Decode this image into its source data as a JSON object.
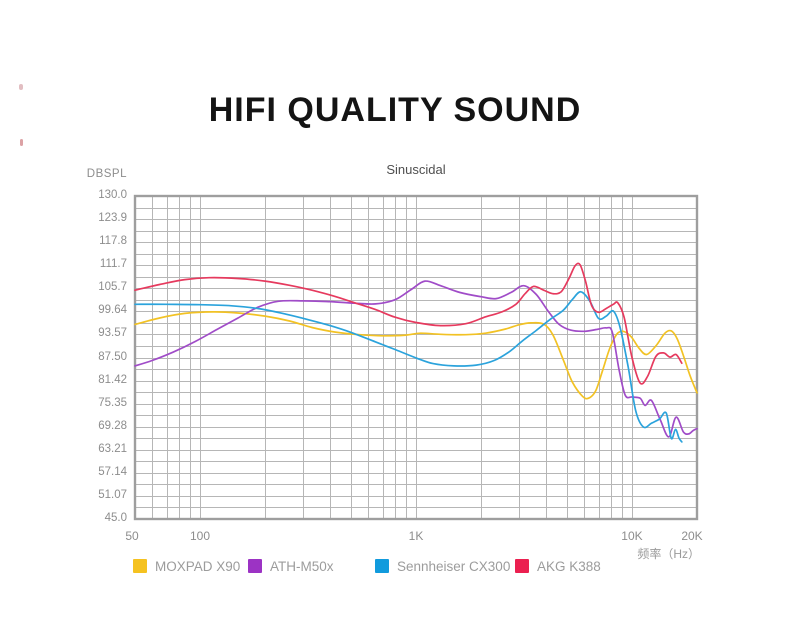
{
  "page": {
    "title": "HIFI QUALITY SOUND"
  },
  "chart_data": {
    "type": "line",
    "title": "Sinuscidal",
    "y_axis_unit": "DBSPL",
    "x_axis_label": "频率（Hz）",
    "x_scale": "log",
    "x_range": [
      50,
      20000
    ],
    "y_range": [
      45,
      130
    ],
    "grid": "on",
    "legend_position": "bottom",
    "y_tick_labels": [
      "130.0",
      "123.9",
      "117.8",
      "111.7",
      "105.7",
      "99.64",
      "93.57",
      "87.50",
      "81.42",
      "75.35",
      "69.28",
      "63.21",
      "57.14",
      "51.07",
      "45.0"
    ],
    "x_ticks": [
      {
        "label": "50",
        "f": 50,
        "dx": -3
      },
      {
        "label": "100",
        "f": 100,
        "dx": 0
      },
      {
        "label": "1K",
        "f": 1000,
        "dx": 0
      },
      {
        "label": "10K",
        "f": 10000,
        "dx": 0
      },
      {
        "label": "20K",
        "f": 20000,
        "dx": -5
      }
    ],
    "x_gridlines": [
      50,
      60,
      70,
      80,
      90,
      100,
      200,
      300,
      400,
      500,
      600,
      700,
      800,
      900,
      1000,
      2000,
      3000,
      4000,
      5000,
      6000,
      7000,
      8000,
      9000,
      10000,
      20000
    ],
    "y_minor_divisions": 28,
    "grid_color": "#b6b6b6",
    "frame_color": "#9e9e9e",
    "series": [
      {
        "name": "MOXPAD X90",
        "color": "#F2C224",
        "points": [
          [
            50,
            96.2
          ],
          [
            65,
            97.9
          ],
          [
            85,
            99.1
          ],
          [
            115,
            99.5
          ],
          [
            150,
            99.2
          ],
          [
            200,
            98.4
          ],
          [
            260,
            97.1
          ],
          [
            330,
            95.4
          ],
          [
            420,
            94.2
          ],
          [
            550,
            93.5
          ],
          [
            700,
            93.2
          ],
          [
            900,
            93.4
          ],
          [
            1050,
            93.9
          ],
          [
            1300,
            93.6
          ],
          [
            1700,
            93.5
          ],
          [
            2100,
            93.9
          ],
          [
            2600,
            95.0
          ],
          [
            3000,
            96.1
          ],
          [
            3400,
            96.6
          ],
          [
            3900,
            96.3
          ],
          [
            4300,
            93.5
          ],
          [
            4800,
            87.0
          ],
          [
            5300,
            81.0
          ],
          [
            5900,
            77.3
          ],
          [
            6300,
            76.8
          ],
          [
            6800,
            78.8
          ],
          [
            7300,
            84.0
          ],
          [
            7900,
            90.0
          ],
          [
            8500,
            93.6
          ],
          [
            9100,
            94.4
          ],
          [
            9900,
            93.0
          ],
          [
            10800,
            89.9
          ],
          [
            11700,
            88.3
          ],
          [
            13000,
            90.8
          ],
          [
            14200,
            93.9
          ],
          [
            15200,
            94.5
          ],
          [
            16200,
            92.4
          ],
          [
            17400,
            87.6
          ],
          [
            18600,
            82.6
          ],
          [
            20000,
            78.2
          ]
        ]
      },
      {
        "name": "ATH-M50x",
        "color": "#A04CC8",
        "points": [
          [
            50,
            85.3
          ],
          [
            60,
            86.7
          ],
          [
            75,
            88.9
          ],
          [
            95,
            91.7
          ],
          [
            120,
            94.9
          ],
          [
            150,
            97.9
          ],
          [
            185,
            100.7
          ],
          [
            230,
            102.3
          ],
          [
            300,
            102.4
          ],
          [
            400,
            102.2
          ],
          [
            520,
            101.8
          ],
          [
            650,
            101.6
          ],
          [
            800,
            102.7
          ],
          [
            950,
            105.4
          ],
          [
            1100,
            107.6
          ],
          [
            1300,
            106.4
          ],
          [
            1600,
            104.6
          ],
          [
            2000,
            103.5
          ],
          [
            2350,
            103.0
          ],
          [
            2750,
            104.6
          ],
          [
            3150,
            106.4
          ],
          [
            3600,
            104.1
          ],
          [
            4100,
            99.6
          ],
          [
            4600,
            96.2
          ],
          [
            5200,
            94.7
          ],
          [
            6000,
            94.4
          ],
          [
            6900,
            94.9
          ],
          [
            7600,
            95.3
          ],
          [
            8100,
            94.2
          ],
          [
            8700,
            84.5
          ],
          [
            9300,
            77.6
          ],
          [
            10000,
            77.1
          ],
          [
            10900,
            76.8
          ],
          [
            11500,
            74.9
          ],
          [
            12300,
            76.2
          ],
          [
            13500,
            71.2
          ],
          [
            14800,
            66.6
          ],
          [
            16000,
            71.8
          ],
          [
            17300,
            67.9
          ],
          [
            18300,
            67.4
          ],
          [
            19200,
            68.3
          ],
          [
            20000,
            68.8
          ]
        ]
      },
      {
        "name": "Sennheiser CX300",
        "color": "#2BA3DC",
        "points": [
          [
            50,
            101.5
          ],
          [
            70,
            101.5
          ],
          [
            100,
            101.4
          ],
          [
            140,
            101.1
          ],
          [
            190,
            100.3
          ],
          [
            250,
            98.9
          ],
          [
            320,
            97.4
          ],
          [
            400,
            95.9
          ],
          [
            500,
            94.1
          ],
          [
            650,
            91.6
          ],
          [
            800,
            89.6
          ],
          [
            1000,
            87.4
          ],
          [
            1200,
            85.9
          ],
          [
            1500,
            85.3
          ],
          [
            1900,
            85.5
          ],
          [
            2300,
            86.7
          ],
          [
            2700,
            89.0
          ],
          [
            3100,
            91.8
          ],
          [
            3600,
            94.6
          ],
          [
            4200,
            97.6
          ],
          [
            4800,
            99.9
          ],
          [
            5300,
            102.8
          ],
          [
            5800,
            104.8
          ],
          [
            6400,
            102.2
          ],
          [
            7000,
            97.8
          ],
          [
            7600,
            98.4
          ],
          [
            8200,
            99.7
          ],
          [
            8800,
            95.5
          ],
          [
            9600,
            85.0
          ],
          [
            10400,
            73.5
          ],
          [
            11300,
            69.2
          ],
          [
            12300,
            70.2
          ],
          [
            13400,
            71.3
          ],
          [
            14400,
            72.9
          ],
          [
            15200,
            66.2
          ],
          [
            15900,
            68.6
          ],
          [
            16500,
            66.3
          ],
          [
            17000,
            65.3
          ]
        ]
      },
      {
        "name": "AKG K388",
        "color": "#E63A5E",
        "points": [
          [
            50,
            105.2
          ],
          [
            65,
            106.7
          ],
          [
            85,
            108.0
          ],
          [
            110,
            108.5
          ],
          [
            150,
            108.3
          ],
          [
            200,
            107.6
          ],
          [
            260,
            106.5
          ],
          [
            330,
            105.2
          ],
          [
            420,
            103.6
          ],
          [
            520,
            101.9
          ],
          [
            650,
            100.1
          ],
          [
            800,
            98.1
          ],
          [
            1000,
            96.7
          ],
          [
            1300,
            95.9
          ],
          [
            1700,
            96.4
          ],
          [
            2100,
            98.2
          ],
          [
            2500,
            99.5
          ],
          [
            2900,
            101.5
          ],
          [
            3200,
            104.3
          ],
          [
            3500,
            106.2
          ],
          [
            3900,
            105.2
          ],
          [
            4300,
            104.3
          ],
          [
            4700,
            104.8
          ],
          [
            5100,
            108.2
          ],
          [
            5450,
            111.6
          ],
          [
            5750,
            111.9
          ],
          [
            6100,
            107.5
          ],
          [
            6500,
            101.2
          ],
          [
            7000,
            99.4
          ],
          [
            7600,
            100.4
          ],
          [
            8200,
            101.5
          ],
          [
            8600,
            101.9
          ],
          [
            9200,
            98.0
          ],
          [
            10000,
            87.5
          ],
          [
            10900,
            80.8
          ],
          [
            11800,
            82.5
          ],
          [
            12900,
            87.8
          ],
          [
            14000,
            88.7
          ],
          [
            15000,
            87.6
          ],
          [
            16000,
            88.3
          ],
          [
            17000,
            86.0
          ]
        ]
      }
    ],
    "legend_swatch_colors": [
      "#F5C220",
      "#9C33C4",
      "#119BDD",
      "#EB2050"
    ]
  }
}
